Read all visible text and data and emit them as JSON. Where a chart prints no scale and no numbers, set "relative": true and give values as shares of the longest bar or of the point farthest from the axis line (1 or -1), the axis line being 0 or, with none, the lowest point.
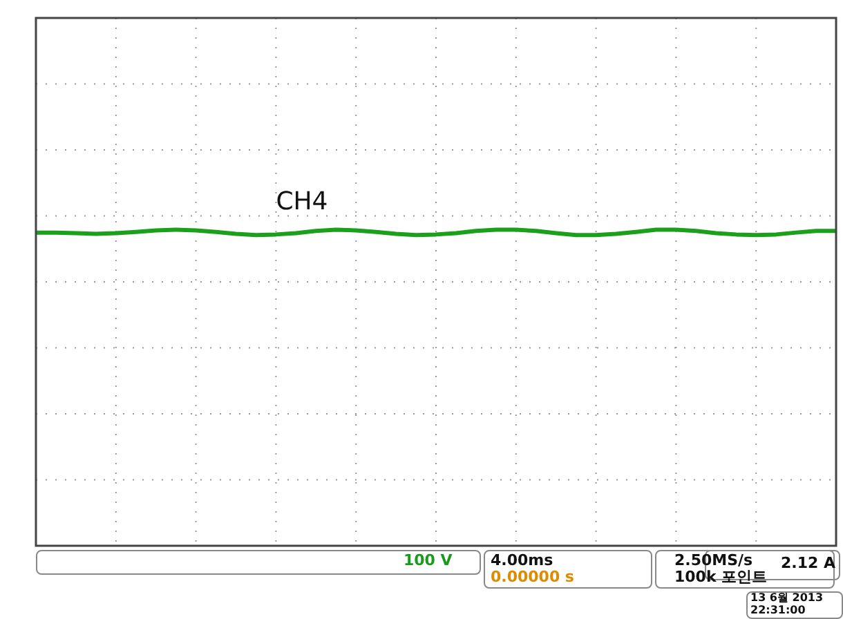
{
  "chart_data": {
    "type": "line",
    "relative": true,
    "grid": true,
    "legend": false,
    "marker": "none",
    "categories": [
      null,
      null,
      null,
      null,
      null,
      null,
      null,
      null,
      null,
      null,
      null,
      null,
      null,
      null,
      null,
      null,
      null,
      null,
      null,
      null,
      null,
      null,
      null,
      null,
      null,
      null,
      null,
      null,
      null,
      null,
      null,
      null,
      null,
      null,
      null,
      null,
      null,
      null,
      null,
      null,
      null
    ],
    "series": [
      {
        "name": "CH4",
        "color": "#1aa01a",
        "values": [
          0.991,
          0.991,
          0.989,
          0.987,
          0.989,
          0.993,
          0.998,
          1.0,
          0.998,
          0.993,
          0.987,
          0.983,
          0.985,
          0.989,
          0.996,
          1.0,
          0.998,
          0.993,
          0.987,
          0.983,
          0.985,
          0.989,
          0.996,
          1.0,
          1.0,
          0.996,
          0.989,
          0.983,
          0.983,
          0.987,
          0.993,
          1.0,
          1.0,
          0.996,
          0.989,
          0.985,
          0.983,
          0.985,
          0.991,
          0.996,
          0.996
        ]
      }
    ],
    "annotations": [
      "100 V",
      "4.00ms",
      "0.00000 s",
      "2.50MS/s",
      "100k 포인트",
      "2.12 A",
      "13 6월 2013",
      "22:31:00"
    ]
  }
}
